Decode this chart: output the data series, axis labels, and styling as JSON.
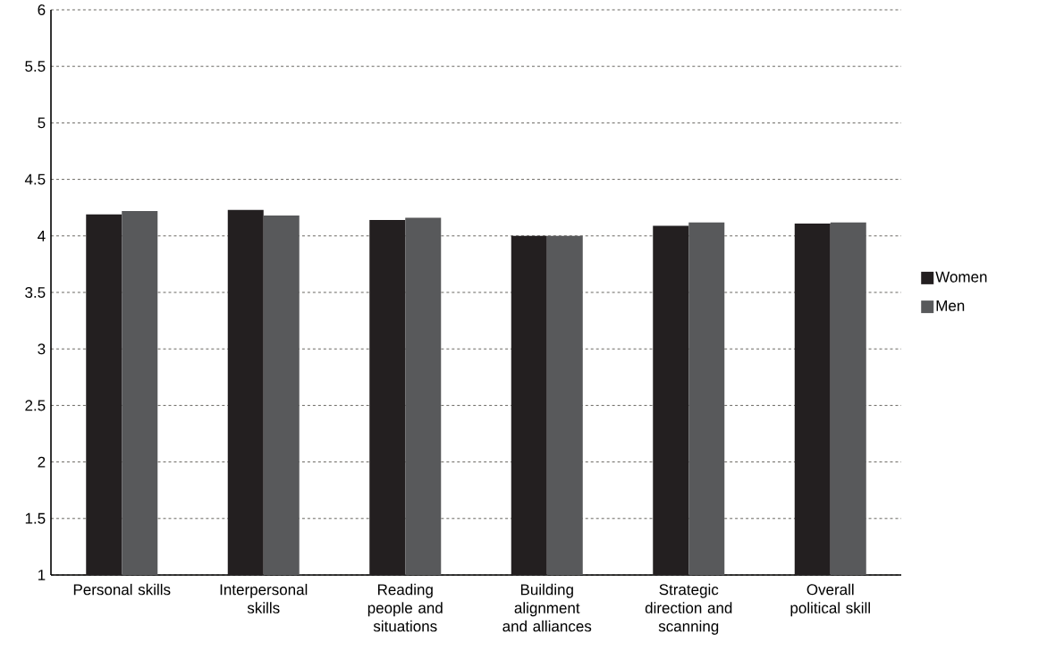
{
  "chart_data": {
    "type": "bar",
    "categories": [
      "Personal skills",
      "Interpersonal skills",
      "Reading people and situations",
      "Building alignment and alliances",
      "Strategic direction and scanning",
      "Overall political skill"
    ],
    "series": [
      {
        "name": "Women",
        "color": "#231f20",
        "values": [
          4.19,
          4.23,
          4.14,
          4.0,
          4.09,
          4.11
        ]
      },
      {
        "name": "Men",
        "color": "#58595b",
        "values": [
          4.22,
          4.18,
          4.16,
          4.0,
          4.12,
          4.12
        ]
      }
    ],
    "ylim": [
      1,
      6
    ],
    "yticks": [
      1,
      1.5,
      2,
      2.5,
      3,
      3.5,
      4,
      4.5,
      5,
      5.5,
      6
    ],
    "grid": "y",
    "legend": "right"
  }
}
